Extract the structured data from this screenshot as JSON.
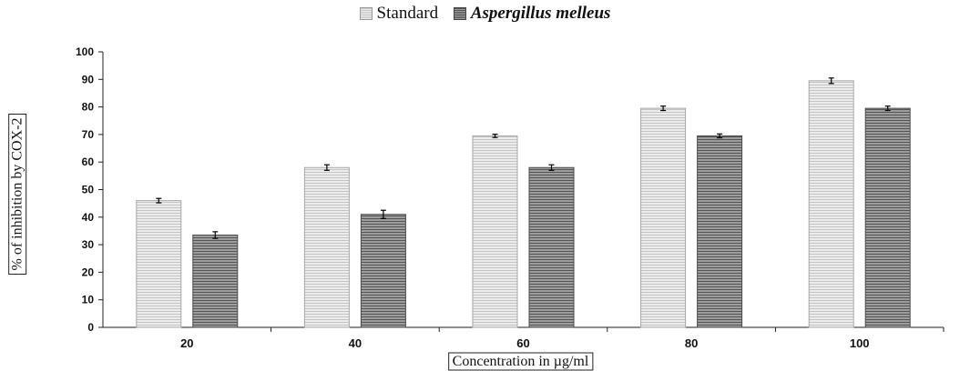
{
  "chart_data": {
    "type": "bar",
    "categories": [
      "20",
      "40",
      "60",
      "80",
      "100"
    ],
    "series": [
      {
        "name": "Standard",
        "values": [
          46,
          58,
          69.5,
          79.5,
          89.5
        ],
        "errors": [
          0.8,
          1.0,
          0.6,
          0.8,
          1.0
        ],
        "color": "#d9d9d9"
      },
      {
        "name": "Aspergillus melleus",
        "values": [
          33.5,
          41,
          58,
          69.5,
          79.5
        ],
        "errors": [
          1.2,
          1.5,
          1.0,
          0.7,
          0.8
        ],
        "color": "#7a7a7a"
      }
    ],
    "xlabel": "Concentration in µg/ml",
    "ylabel": "% of inhibition by COX-2",
    "ylim": [
      0,
      100
    ],
    "yticks": [
      "0",
      "10",
      "20",
      "30",
      "40",
      "50",
      "60",
      "70",
      "80",
      "90",
      "100"
    ],
    "grid": false,
    "legend_position": "top-center"
  }
}
